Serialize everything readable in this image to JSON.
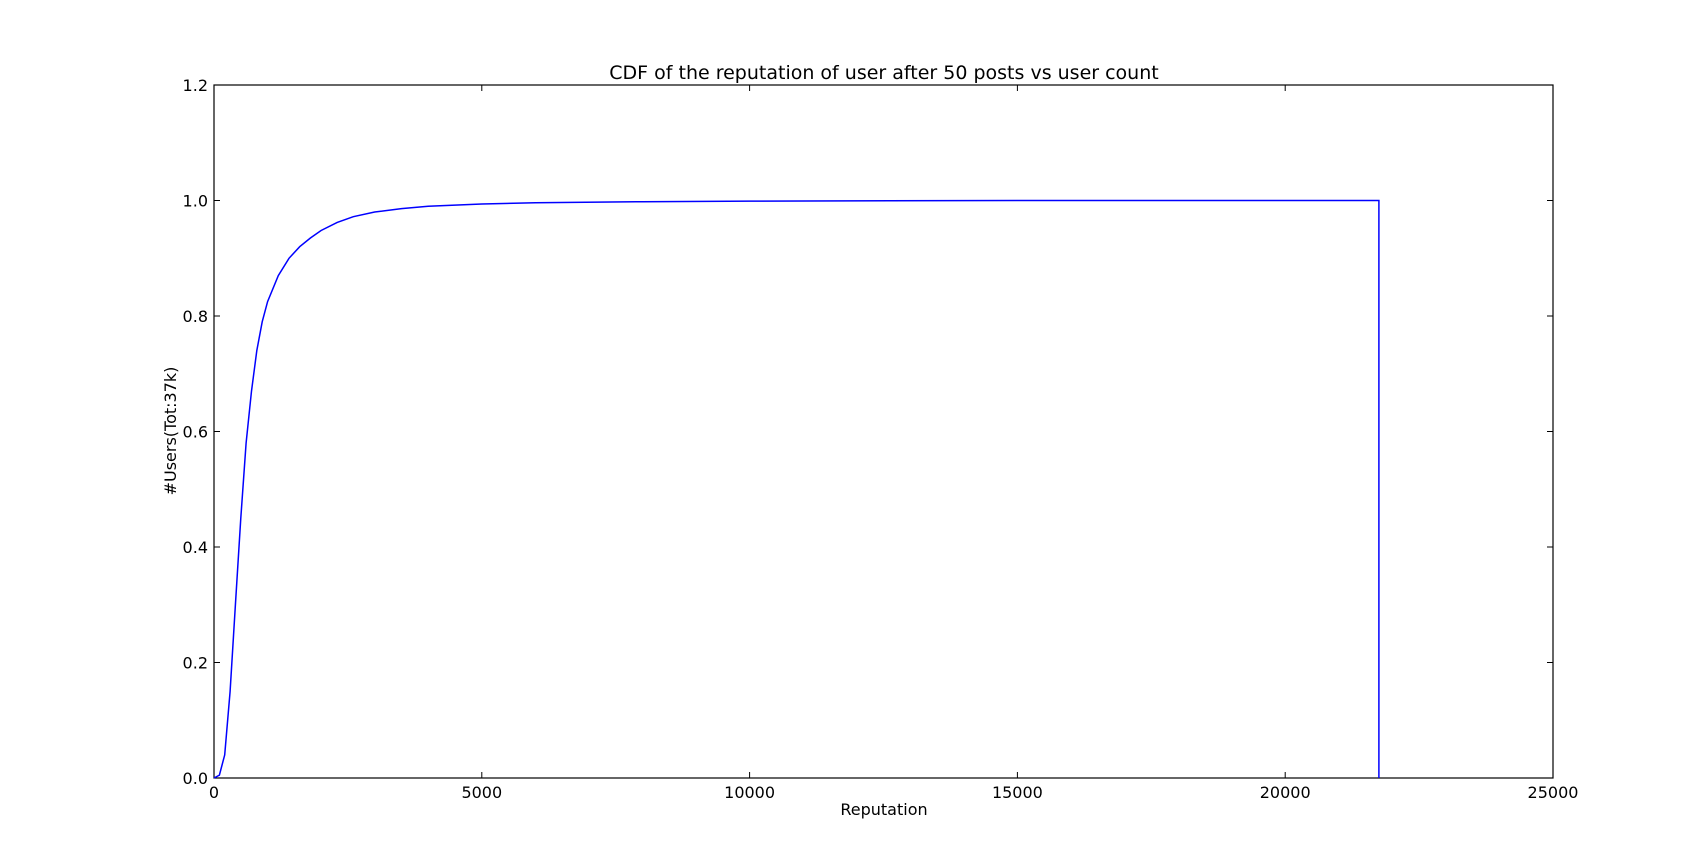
{
  "chart_data": {
    "type": "line",
    "title": "CDF of the reputation of user after 50 posts vs user count",
    "xlabel": "Reputation",
    "ylabel": "#Users(Tot:37k)",
    "xlim": [
      0,
      25000
    ],
    "ylim": [
      0,
      1.2
    ],
    "xticks": [
      0,
      5000,
      10000,
      15000,
      20000,
      25000
    ],
    "yticks": [
      0.0,
      0.2,
      0.4,
      0.6,
      0.8,
      1.0,
      1.2
    ],
    "xtick_labels": [
      "0",
      "5000",
      "10000",
      "15000",
      "20000",
      "25000"
    ],
    "ytick_labels": [
      "0.0",
      "0.2",
      "0.4",
      "0.6",
      "0.8",
      "1.0",
      "1.2"
    ],
    "grid": false,
    "line_color": "#0000ff",
    "series": [
      {
        "x": [
          0,
          100,
          200,
          300,
          400,
          500,
          600,
          700,
          800,
          900,
          1000,
          1200,
          1400,
          1600,
          1800,
          2000,
          2300,
          2600,
          3000,
          3500,
          4000,
          5000,
          6000,
          8000,
          10000,
          15000,
          20000,
          21750,
          21750
        ],
        "y": [
          0.0,
          0.005,
          0.04,
          0.15,
          0.3,
          0.45,
          0.58,
          0.67,
          0.74,
          0.79,
          0.825,
          0.87,
          0.9,
          0.92,
          0.935,
          0.948,
          0.962,
          0.972,
          0.98,
          0.986,
          0.99,
          0.994,
          0.996,
          0.998,
          0.999,
          1.0,
          1.0,
          1.0,
          0.0
        ]
      }
    ]
  }
}
